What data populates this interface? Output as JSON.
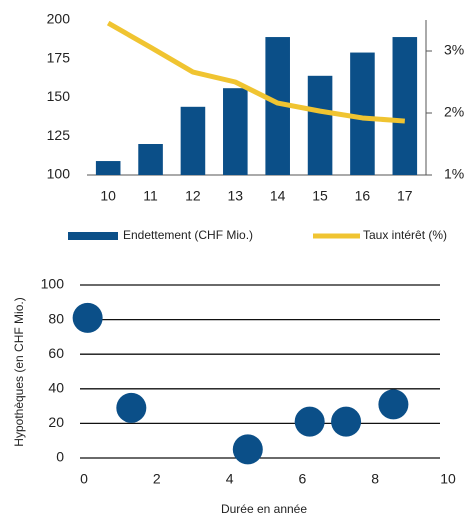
{
  "chart_data": [
    {
      "type": "bar",
      "categories": [
        "10",
        "11",
        "12",
        "13",
        "14",
        "15",
        "16",
        "17"
      ],
      "series": [
        {
          "name": "Endettement (CHF Mio.)",
          "color": "#0b4f88",
          "values": [
            109,
            120,
            144,
            156,
            189,
            164,
            179,
            189
          ]
        },
        {
          "name": "Taux intérêt (%)",
          "color": "#f0c431",
          "axis": "y2",
          "values": [
            3.45,
            3.06,
            2.66,
            2.5,
            2.16,
            2.03,
            1.92,
            1.87
          ]
        }
      ],
      "ylim": [
        100,
        200
      ],
      "yticks": [
        100,
        125,
        150,
        175,
        200
      ],
      "y2lim": [
        1,
        3.5
      ],
      "y2ticks": [
        {
          "value": 1,
          "label": "1%"
        },
        {
          "value": 2,
          "label": "2%"
        },
        {
          "value": 3,
          "label": "3%"
        }
      ],
      "legend": "bottom"
    },
    {
      "type": "scatter",
      "x": [
        0.1,
        1.3,
        4.5,
        6.2,
        7.2,
        8.5
      ],
      "values": [
        81,
        29,
        5,
        21,
        21,
        31
      ],
      "color": "#0b4f88",
      "xlabel": "Durée en année",
      "ylabel": "Hypothèques (en CHF Mio.)",
      "xlim": [
        0,
        10
      ],
      "xticks": [
        0,
        2,
        4,
        6,
        8,
        10
      ],
      "ylim": [
        0,
        100
      ],
      "yticks": [
        0,
        20,
        40,
        60,
        80,
        100
      ],
      "grid": true
    }
  ]
}
